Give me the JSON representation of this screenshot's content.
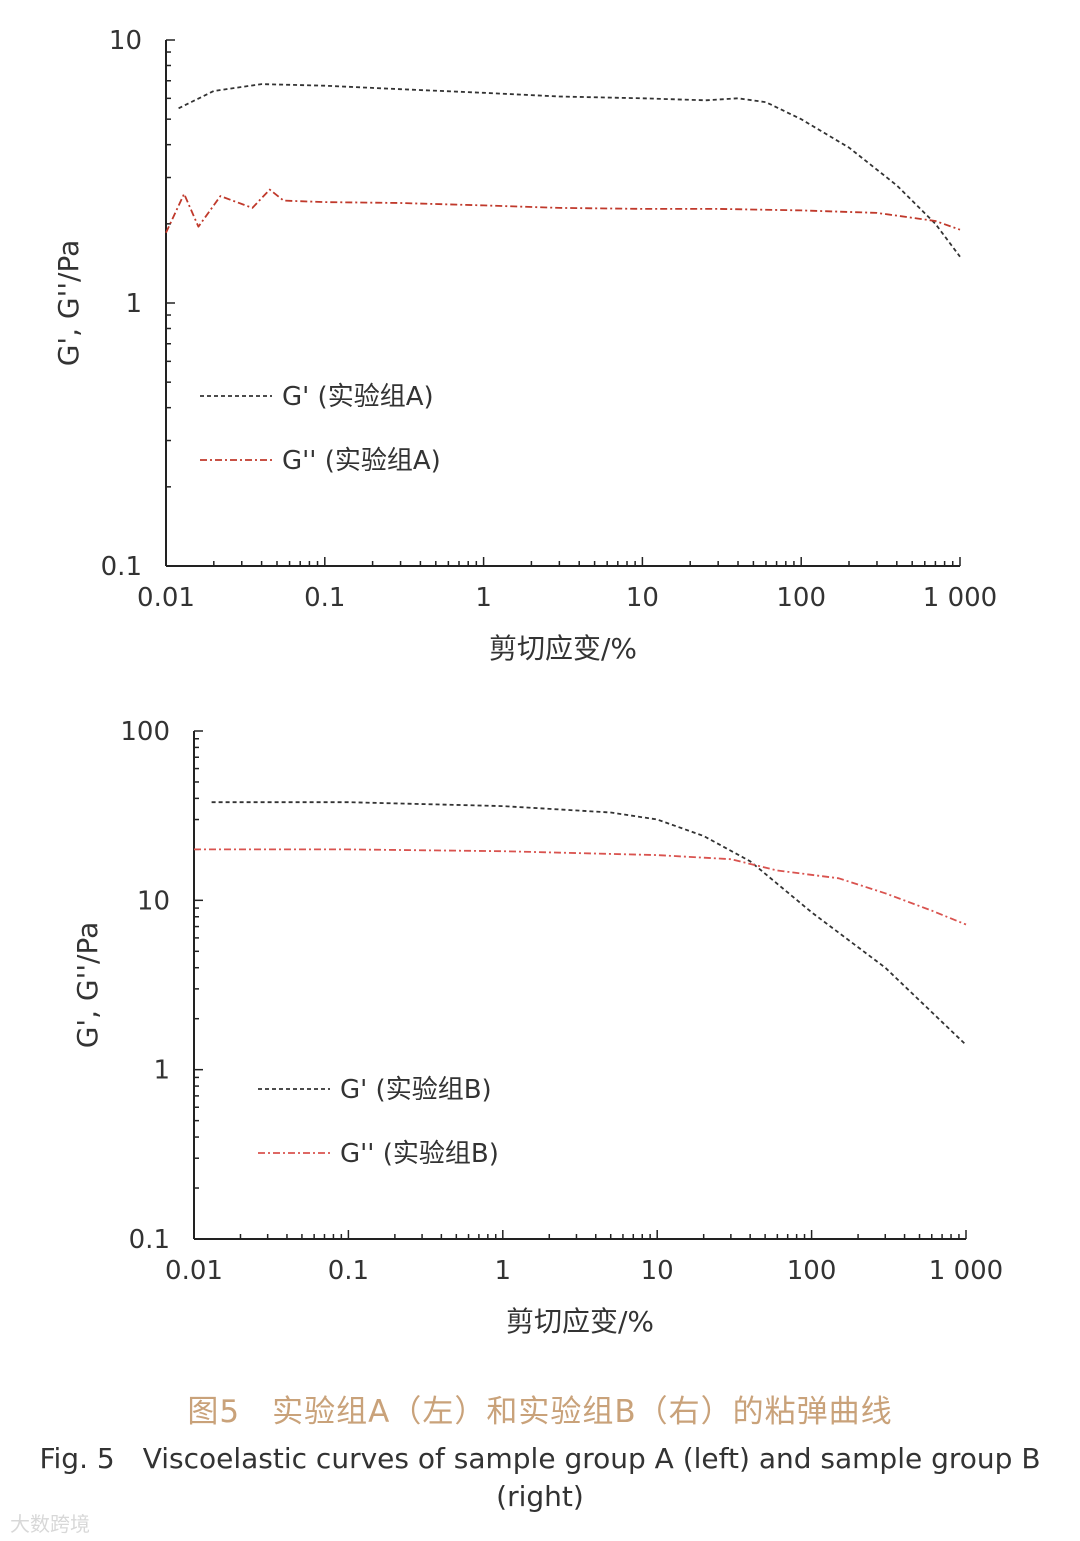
{
  "chart_data": [
    {
      "type": "line",
      "xlabel": "剪切应变/%",
      "ylabel": "G', G''/Pa",
      "xscale": "log",
      "yscale": "log",
      "xlim": [
        0.01,
        1000
      ],
      "ylim": [
        0.1,
        10
      ],
      "x_ticks": [
        "0.01",
        "0.1",
        "1",
        "10",
        "100",
        "1 000"
      ],
      "y_ticks": [
        "0.1",
        "1",
        "10"
      ],
      "legend_position": "center-left",
      "series": [
        {
          "name": "G' (实验组A)",
          "color": "#333333",
          "x": [
            0.012,
            0.02,
            0.04,
            0.1,
            0.3,
            1,
            3,
            10,
            25,
            40,
            60,
            100,
            200,
            400,
            700,
            1000
          ],
          "y": [
            5.5,
            6.4,
            6.8,
            6.7,
            6.5,
            6.3,
            6.1,
            6.0,
            5.9,
            6.0,
            5.8,
            5.0,
            3.9,
            2.8,
            2.0,
            1.5
          ]
        },
        {
          "name": "G'' (实验组A)",
          "color": "#c0392b",
          "x": [
            0.01,
            0.013,
            0.016,
            0.022,
            0.035,
            0.045,
            0.055,
            0.1,
            0.3,
            1,
            3,
            10,
            30,
            100,
            300,
            700,
            1000
          ],
          "y": [
            1.85,
            2.6,
            1.95,
            2.55,
            2.3,
            2.7,
            2.45,
            2.42,
            2.4,
            2.35,
            2.3,
            2.28,
            2.28,
            2.25,
            2.2,
            2.05,
            1.9
          ]
        }
      ]
    },
    {
      "type": "line",
      "xlabel": "剪切应变/%",
      "ylabel": "G', G''/Pa",
      "xscale": "log",
      "yscale": "log",
      "xlim": [
        0.01,
        1000
      ],
      "ylim": [
        0.1,
        100
      ],
      "x_ticks": [
        "0.01",
        "0.1",
        "1",
        "10",
        "100",
        "1 000"
      ],
      "y_ticks": [
        "0.1",
        "1",
        "10",
        "100"
      ],
      "legend_position": "center-left",
      "series": [
        {
          "name": "G' (实验组B)",
          "color": "#333333",
          "x": [
            0.013,
            0.1,
            1,
            5,
            10,
            20,
            40,
            100,
            300,
            1000
          ],
          "y": [
            38,
            38,
            36,
            33,
            30,
            24,
            17,
            8.5,
            4.0,
            1.4
          ]
        },
        {
          "name": "G'' (实验组B)",
          "color": "#d9534f",
          "x": [
            0.01,
            0.1,
            1,
            10,
            30,
            60,
            150,
            300,
            600,
            1000
          ],
          "y": [
            20,
            20,
            19.5,
            18.5,
            17.5,
            15,
            13.5,
            11,
            8.7,
            7.2
          ]
        }
      ]
    }
  ],
  "caption": {
    "cn": "图5　实验组A（左）和实验组B（右）的粘弹曲线",
    "en": "Fig. 5　Viscoelastic curves of sample group A (left) and sample group B (right)"
  },
  "watermark": "大数跨境"
}
